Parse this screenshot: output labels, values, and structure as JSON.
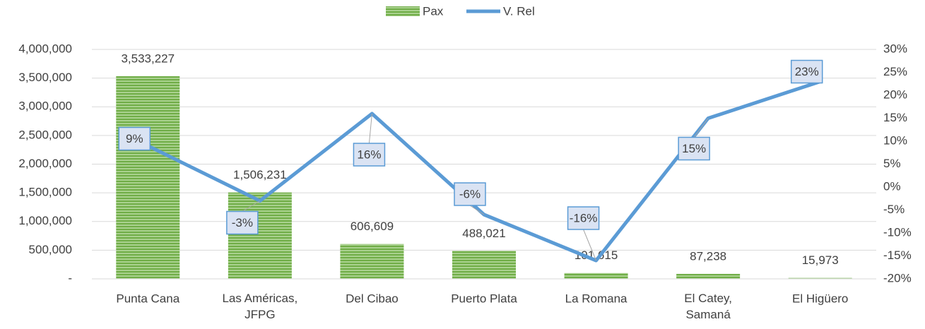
{
  "chart_data": {
    "type": "bar-line",
    "categories": [
      "Punta Cana",
      "Las Américas, JFPG",
      "Del Cibao",
      "Puerto Plata",
      "La Romana",
      "El Catey, Samaná",
      "El Higüero"
    ],
    "series": [
      {
        "name": "Pax",
        "color": "#70ad47",
        "type": "bar",
        "values": [
          3533227,
          1506231,
          606609,
          488021,
          101615,
          87238,
          15973
        ],
        "value_labels": [
          "3,533,227",
          "1,506,231",
          "606,609",
          "488,021",
          "101,615",
          "87,238",
          "15,973"
        ]
      },
      {
        "name": "V. Rel",
        "color": "#5b9bd5",
        "type": "line",
        "axis": "y2",
        "values": [
          9,
          -3,
          16,
          -6,
          -16,
          15,
          23
        ],
        "value_labels": [
          "9%",
          "-3%",
          "16%",
          "-6%",
          "-16%",
          "15%",
          "23%"
        ]
      }
    ],
    "ylim": [
      0,
      4000000
    ],
    "yticks": [
      {
        "value": 0,
        "label": "-"
      },
      {
        "value": 500000,
        "label": "500,000"
      },
      {
        "value": 1000000,
        "label": "1,000,000"
      },
      {
        "value": 1500000,
        "label": "1,500,000"
      },
      {
        "value": 2000000,
        "label": "2,000,000"
      },
      {
        "value": 2500000,
        "label": "2,500,000"
      },
      {
        "value": 3000000,
        "label": "3,000,000"
      },
      {
        "value": 3500000,
        "label": "3,500,000"
      },
      {
        "value": 4000000,
        "label": "4,000,000"
      }
    ],
    "y2lim": [
      -20,
      30
    ],
    "y2ticks": [
      {
        "value": -20,
        "label": "-20%"
      },
      {
        "value": -15,
        "label": "-15%"
      },
      {
        "value": -10,
        "label": "-10%"
      },
      {
        "value": -5,
        "label": "-5%"
      },
      {
        "value": 0,
        "label": "0%"
      },
      {
        "value": 5,
        "label": "5%"
      },
      {
        "value": 10,
        "label": "10%"
      },
      {
        "value": 15,
        "label": "15%"
      },
      {
        "value": 20,
        "label": "20%"
      },
      {
        "value": 25,
        "label": "25%"
      },
      {
        "value": 30,
        "label": "30%"
      }
    ],
    "grid": true,
    "legend": "top"
  }
}
